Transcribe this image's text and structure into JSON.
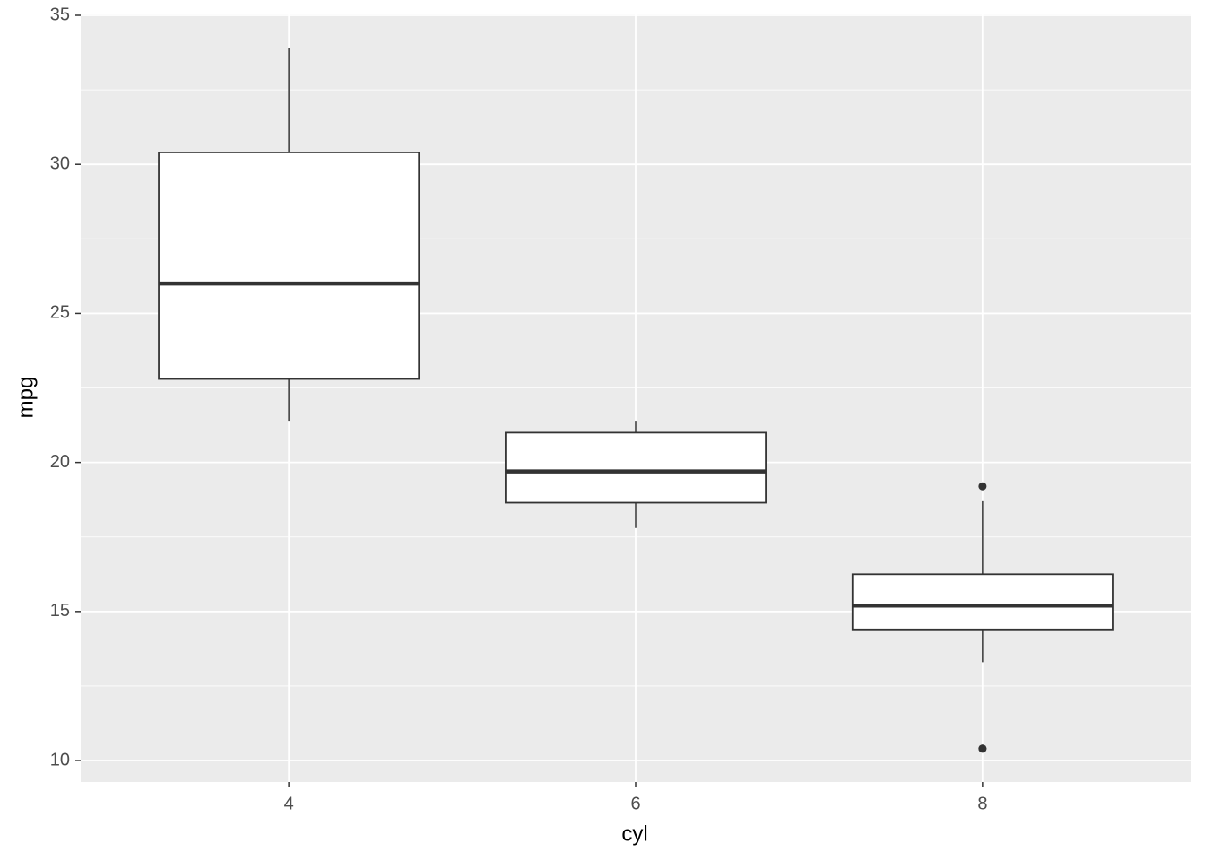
{
  "chart_data": {
    "type": "boxplot",
    "x_label": "cyl",
    "y_label": "mpg",
    "categories": [
      "4",
      "6",
      "8"
    ],
    "boxes": [
      {
        "min": 21.4,
        "q1": 22.8,
        "median": 26.0,
        "q3": 30.4,
        "max": 33.9,
        "outliers": []
      },
      {
        "min": 17.8,
        "q1": 18.65,
        "median": 19.7,
        "q3": 21.0,
        "max": 21.4,
        "outliers": []
      },
      {
        "min": 13.3,
        "q1": 14.4,
        "median": 15.2,
        "q3": 16.25,
        "max": 18.7,
        "outliers": [
          19.2,
          10.4,
          10.4
        ]
      }
    ],
    "color": "#333333",
    "box_fill": "#ffffff",
    "ylim": [
      9.28,
      35.03
    ],
    "yticks": [
      10,
      15,
      20,
      25,
      30,
      35
    ],
    "grid": true
  }
}
